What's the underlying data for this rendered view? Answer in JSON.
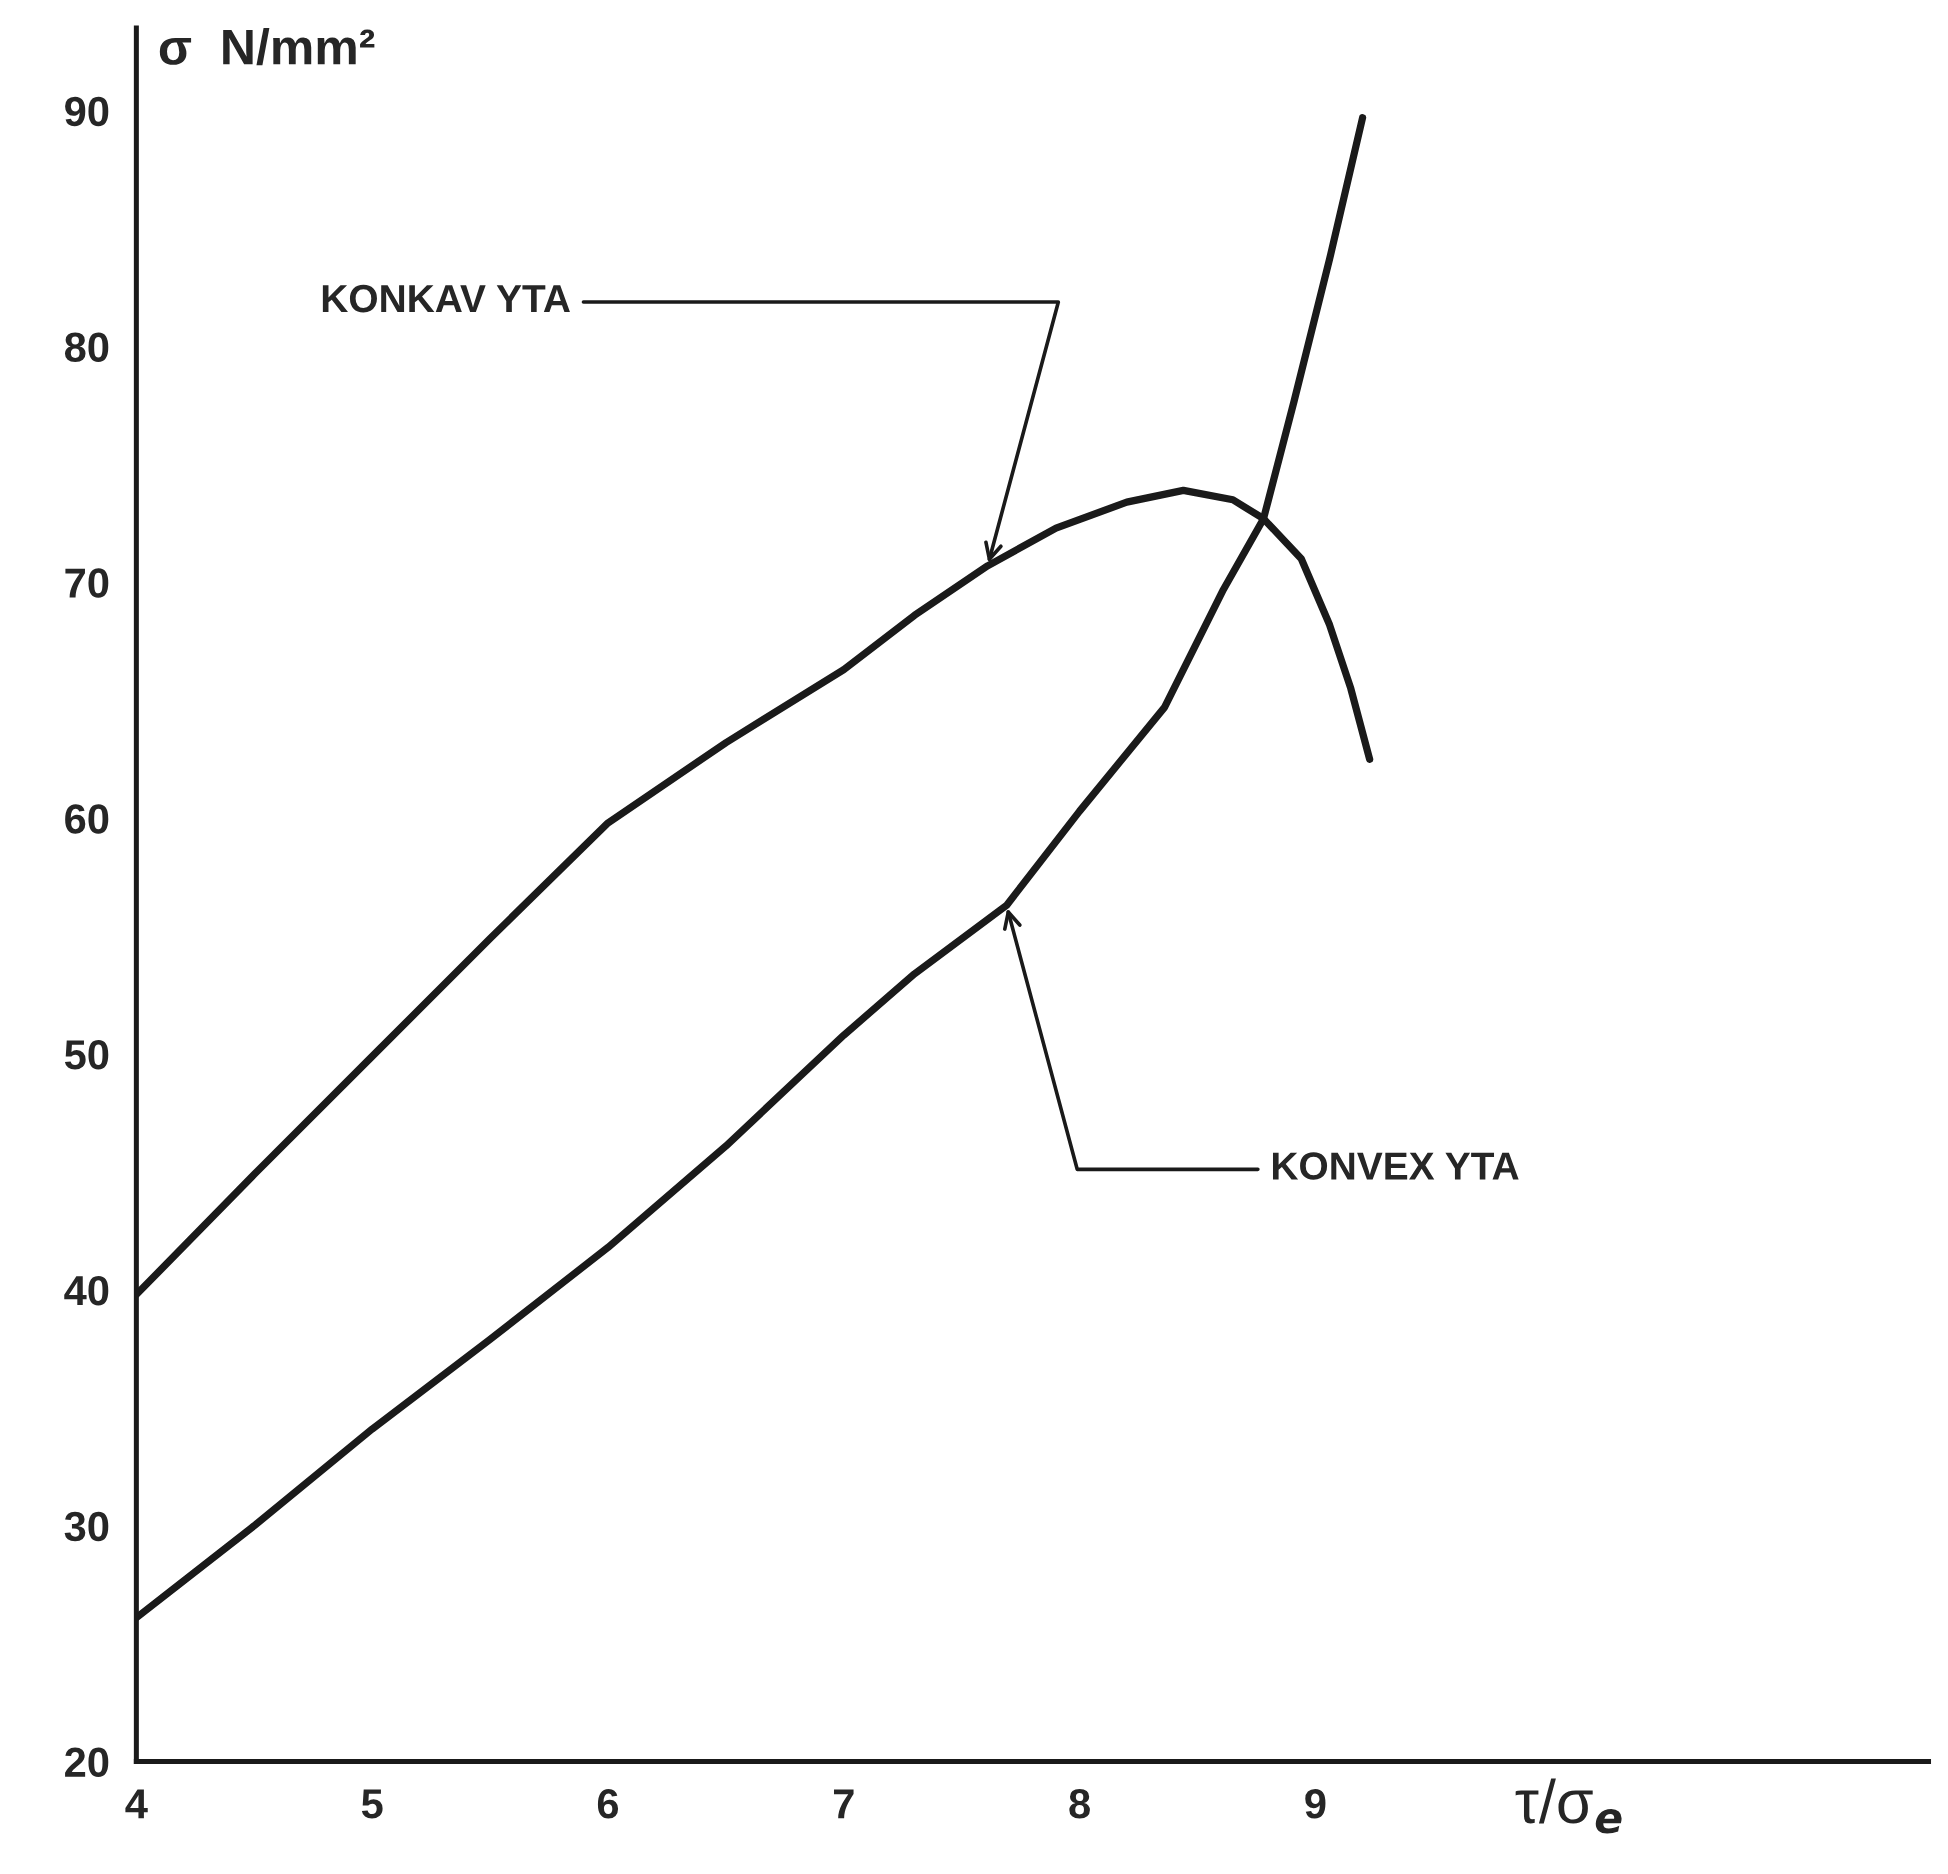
{
  "chart_data": {
    "type": "line",
    "xlabel": "τ/σ$_{e}$",
    "ylabel": "σ  N/mm²",
    "xlim": [
      4,
      11.6
    ],
    "ylim": [
      20,
      93.5
    ],
    "xticks": [
      4,
      5,
      6,
      7,
      8,
      9
    ],
    "yticks": [
      20,
      30,
      40,
      50,
      60,
      70,
      80,
      90
    ],
    "grid": false,
    "legend": false,
    "marker": "none",
    "line_style": "solid",
    "series": [
      {
        "color": "#1a1a1a",
        "x": [
          4,
          4.5,
          5,
          5.5,
          6,
          6.5,
          7,
          7.3,
          7.61,
          7.9,
          8.2,
          8.44,
          8.65,
          8.78,
          8.94,
          9.06,
          9.15,
          9.23
        ],
        "values": [
          39.8,
          44.9,
          49.9,
          54.9,
          59.8,
          63.2,
          66.3,
          68.6,
          70.7,
          72.3,
          73.4,
          73.9,
          73.5,
          72.7,
          71.0,
          68.2,
          65.5,
          62.5
        ]
      },
      {
        "color": "#1a1a1a",
        "x": [
          4,
          4.5,
          5,
          5.5,
          6,
          6.5,
          7,
          7.3,
          7.69,
          8,
          8.36,
          8.61,
          8.78,
          8.91,
          9.06,
          9.2
        ],
        "values": [
          26.1,
          30.0,
          34.1,
          37.9,
          41.8,
          46.1,
          50.8,
          53.4,
          56.3,
          60.3,
          64.7,
          69.7,
          72.7,
          77.7,
          83.7,
          89.7
        ]
      }
    ],
    "annotations": [
      {
        "text": "KONKAV YTA",
        "x": 7.61,
        "y": 70.7
      },
      {
        "text": "KONVEX YTA",
        "x": 7.69,
        "y": 56.3
      }
    ]
  }
}
